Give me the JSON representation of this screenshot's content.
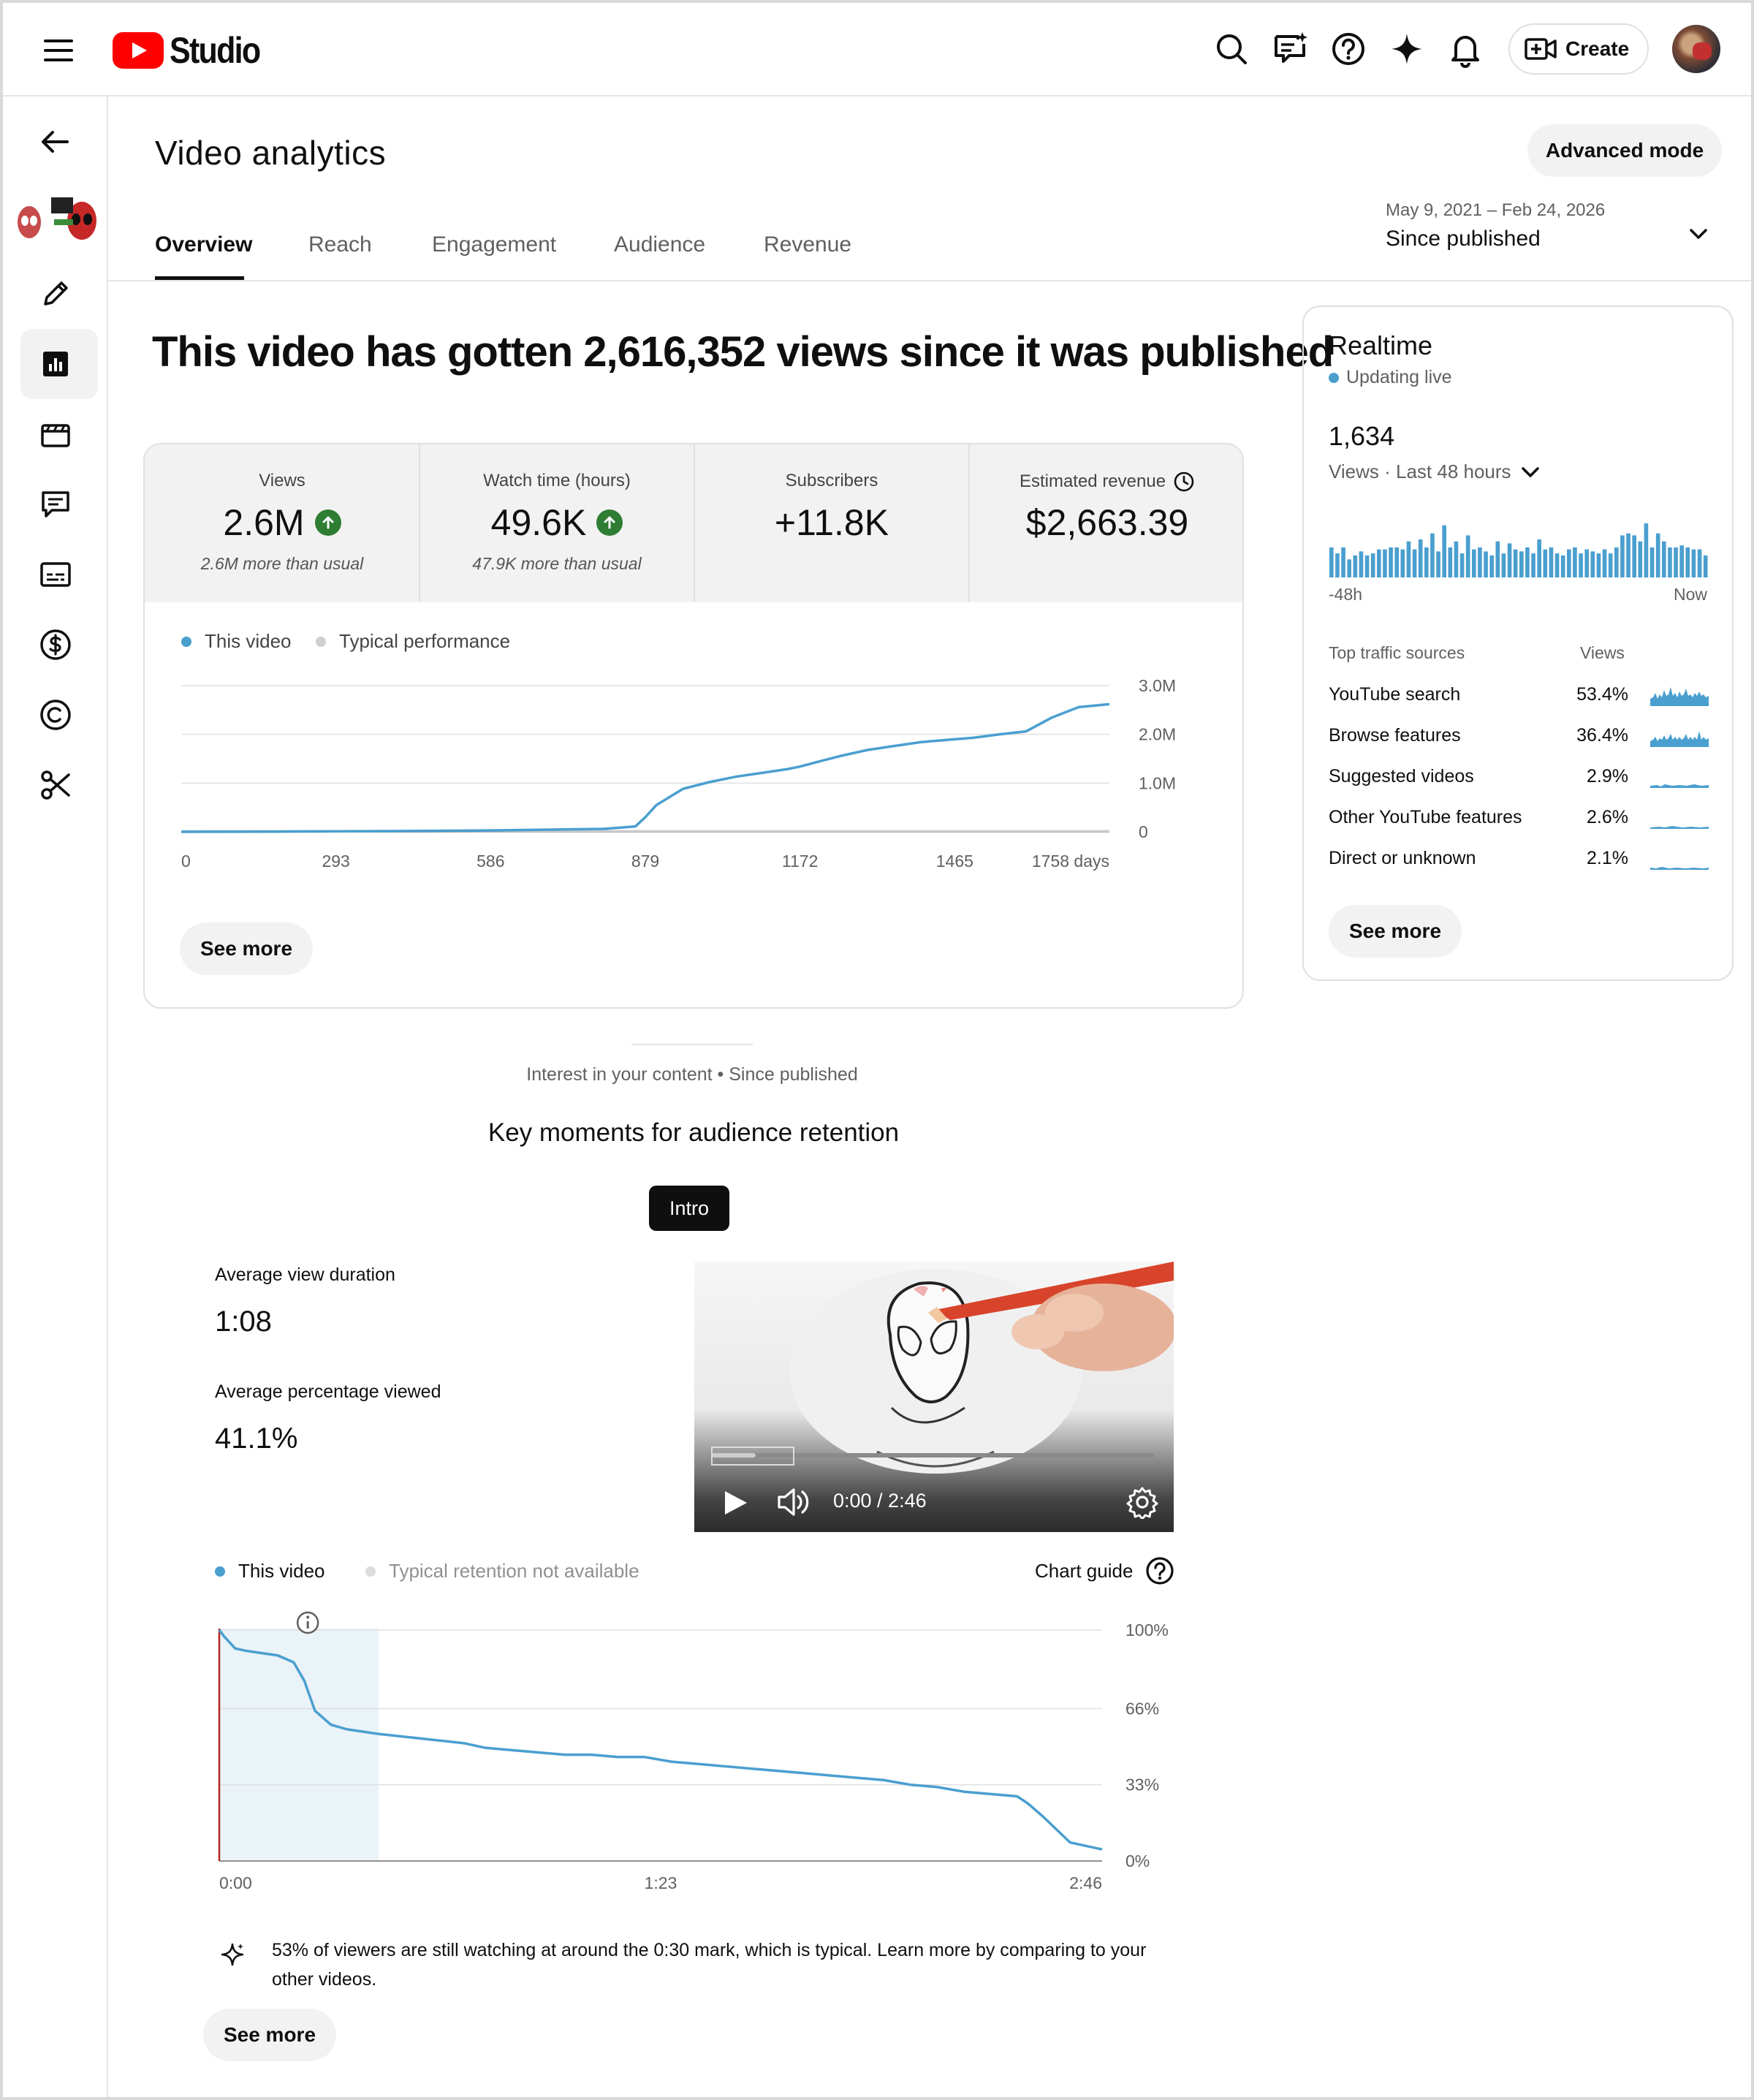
{
  "header": {
    "logo_text": "Studio",
    "create_label": "Create",
    "icons": [
      "menu-icon",
      "search-icon",
      "feedback-icon",
      "help-icon",
      "sparkle-icon",
      "bell-icon",
      "create-video-icon"
    ]
  },
  "sidebar": {
    "items": [
      "back-arrow-icon",
      "channel-thumbnail",
      "pencil-icon",
      "analytics-icon",
      "clapperboard-icon",
      "comments-icon",
      "subtitles-icon",
      "dollar-icon",
      "copyright-icon",
      "scissors-icon"
    ],
    "active": "analytics-icon"
  },
  "page": {
    "title": "Video analytics",
    "advanced_mode_label": "Advanced mode",
    "tabs": [
      "Overview",
      "Reach",
      "Engagement",
      "Audience",
      "Revenue"
    ],
    "active_tab": "Overview",
    "date_range": "May 9, 2021 – Feb 24, 2026",
    "date_label": "Since published",
    "headline": "This video has gotten 2,616,352 views since it was published"
  },
  "metrics": [
    {
      "label": "Views",
      "value": "2.6M",
      "trend": "up",
      "sub": "2.6M more than usual"
    },
    {
      "label": "Watch time (hours)",
      "value": "49.6K",
      "trend": "up",
      "sub": "47.9K more than usual"
    },
    {
      "label": "Subscribers",
      "value": "+11.8K",
      "trend": "",
      "sub": ""
    },
    {
      "label": "Estimated revenue",
      "value": "$2,663.39",
      "trend": "",
      "sub": ""
    }
  ],
  "views_chart": {
    "legend": [
      "This video",
      "Typical performance"
    ],
    "see_more_label": "See more"
  },
  "realtime": {
    "title": "Realtime",
    "live_label": "Updating live",
    "count": "1,634",
    "period": "Views · Last 48 hours",
    "axis_left": "-48h",
    "axis_right": "Now",
    "traffic_header": "Top traffic sources",
    "views_header": "Views",
    "sources": [
      {
        "name": "YouTube search",
        "value": "53.4%",
        "share": 0.534
      },
      {
        "name": "Browse features",
        "value": "36.4%",
        "share": 0.364
      },
      {
        "name": "Suggested videos",
        "value": "2.9%",
        "share": 0.029
      },
      {
        "name": "Other YouTube features",
        "value": "2.6%",
        "share": 0.026
      },
      {
        "name": "Direct or unknown",
        "value": "2.1%",
        "share": 0.021
      }
    ],
    "see_more_label": "See more"
  },
  "retention": {
    "interest_label": "Interest in your content • Since published",
    "title": "Key moments for audience retention",
    "chip_label": "Intro",
    "avg_duration_label": "Average view duration",
    "avg_duration_value": "1:08",
    "avg_pct_label": "Average percentage viewed",
    "avg_pct_value": "41.1%",
    "video_time": "0:00 / 2:46",
    "legend_this": "This video",
    "legend_typical": "Typical retention not available",
    "chart_guide_label": "Chart guide",
    "insight": "53% of viewers are still watching at around the 0:30 mark, which is typical. Learn more by comparing to your other videos.",
    "see_more_label": "See more"
  },
  "colors": {
    "accent": "#4a9fcf",
    "typical": "#cfcfcf",
    "up": "#2e7d32",
    "highlight": "#eaf3f8"
  },
  "chart_data": [
    {
      "type": "line",
      "title": "",
      "xlabel": "",
      "ylabel": "",
      "x_ticks": [
        "0",
        "293",
        "586",
        "879",
        "1172",
        "1465",
        "1758 days"
      ],
      "y_ticks": [
        "3.0M",
        "2.0M",
        "1.0M",
        "0"
      ],
      "xlim": [
        0,
        1758
      ],
      "ylim": [
        0,
        3000000
      ],
      "series": [
        {
          "name": "This video",
          "x": [
            0,
            200,
            400,
            600,
            800,
            860,
            879,
            900,
            950,
            1000,
            1050,
            1100,
            1150,
            1172,
            1200,
            1250,
            1300,
            1350,
            1400,
            1465,
            1500,
            1550,
            1600,
            1650,
            1700,
            1758
          ],
          "y": [
            0,
            5000,
            15000,
            30000,
            60000,
            110000,
            300000,
            550000,
            880000,
            1020000,
            1130000,
            1210000,
            1290000,
            1340000,
            1420000,
            1560000,
            1680000,
            1760000,
            1840000,
            1900000,
            1930000,
            2000000,
            2060000,
            2350000,
            2560000,
            2620000
          ]
        },
        {
          "name": "Typical performance",
          "x": [
            0,
            1758
          ],
          "y": [
            0,
            0
          ]
        }
      ]
    },
    {
      "type": "bar",
      "title": "",
      "xlabel": "",
      "ylabel": "",
      "x_ticks": [
        "-48h",
        "Now"
      ],
      "series": [
        {
          "name": "Views · Last 48 hours",
          "values": [
            30,
            24,
            30,
            18,
            22,
            26,
            22,
            24,
            28,
            28,
            30,
            30,
            28,
            36,
            28,
            38,
            30,
            44,
            26,
            52,
            30,
            36,
            24,
            42,
            28,
            30,
            26,
            22,
            36,
            24,
            34,
            28,
            26,
            30,
            24,
            38,
            28,
            30,
            24,
            22,
            28,
            30,
            24,
            28,
            26,
            24,
            28,
            24,
            30,
            42,
            44,
            42,
            36,
            54,
            30,
            44,
            36,
            30,
            30,
            32,
            30,
            28,
            28,
            22
          ]
        }
      ]
    },
    {
      "type": "line",
      "title": "",
      "xlabel": "",
      "ylabel": "",
      "x_ticks": [
        "0:00",
        "1:23",
        "2:46"
      ],
      "y_ticks": [
        "100%",
        "66%",
        "33%",
        "0%"
      ],
      "xlim": [
        0,
        166
      ],
      "ylim": [
        0,
        100
      ],
      "highlight_range": [
        0,
        30
      ],
      "series": [
        {
          "name": "This video",
          "x": [
            0,
            1,
            3,
            5,
            8,
            11,
            14,
            16,
            18,
            21,
            24,
            27,
            30,
            34,
            38,
            42,
            46,
            50,
            55,
            60,
            65,
            70,
            75,
            80,
            85,
            90,
            95,
            100,
            105,
            110,
            115,
            120,
            125,
            130,
            135,
            140,
            145,
            150,
            152,
            155,
            160,
            166
          ],
          "y": [
            100,
            97,
            92,
            91,
            90,
            89,
            86,
            78,
            65,
            59,
            57,
            56,
            55,
            54,
            53,
            52,
            51,
            49,
            48,
            47,
            46,
            46,
            45,
            45,
            43,
            42,
            41,
            40,
            39,
            38,
            37,
            36,
            35,
            33,
            32,
            30,
            29,
            28,
            25,
            19,
            8,
            5
          ]
        }
      ]
    }
  ]
}
